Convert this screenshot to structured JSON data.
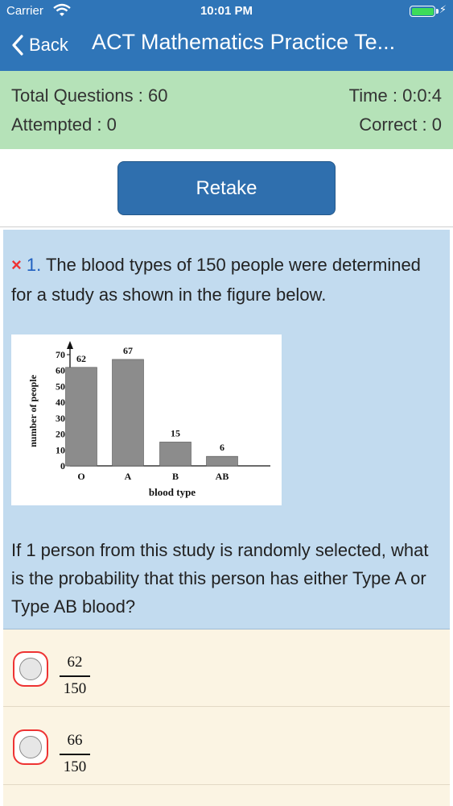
{
  "status_bar": {
    "carrier": "Carrier",
    "time": "10:01 PM"
  },
  "nav": {
    "back_label": "Back",
    "title": "ACT Mathematics Practice Te..."
  },
  "stats": {
    "total_questions": "Total Questions : 60",
    "time": "Time : 0:0:4",
    "attempted": "Attempted : 0",
    "correct": "Correct : 0"
  },
  "retake_label": "Retake",
  "question": {
    "mark": "×",
    "number": "1.",
    "text": "The blood types of 150 people were determined for a study as shown in the figure below.",
    "prompt": "If 1 person from this study is randomly selected, what is the probability that this person has either Type A or Type AB blood?"
  },
  "chart_data": {
    "type": "bar",
    "categories": [
      "O",
      "A",
      "B",
      "AB"
    ],
    "values": [
      62,
      67,
      15,
      6
    ],
    "xlabel": "blood type",
    "ylabel": "number of people",
    "ylim": [
      0,
      70
    ],
    "yticks": [
      0,
      10,
      20,
      30,
      40,
      50,
      60,
      70
    ],
    "bar_color": "#8c8c8c"
  },
  "options": [
    {
      "numerator": "62",
      "denominator": "150"
    },
    {
      "numerator": "66",
      "denominator": "150"
    }
  ],
  "colors": {
    "nav": "#2f75b8",
    "stats": "#b5e2b8",
    "question_bg": "#c2dbef",
    "answers_bg": "#fbf4e3",
    "wrong": "#e33333"
  }
}
